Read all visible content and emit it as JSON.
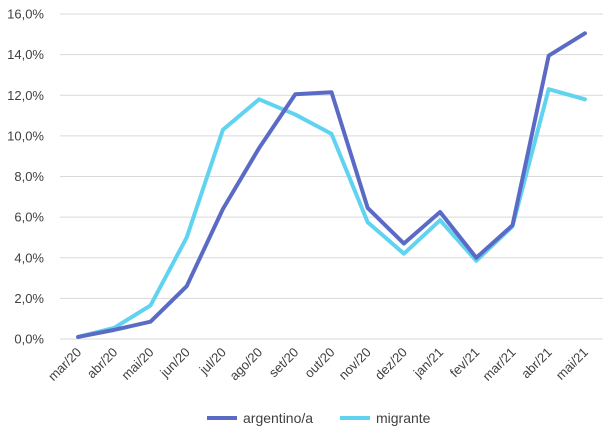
{
  "chart_data": {
    "type": "line",
    "categories": [
      "mar/20",
      "abr/20",
      "mai/20",
      "jun/20",
      "jul/20",
      "ago/20",
      "set/20",
      "out/20",
      "nov/20",
      "dez/20",
      "jan/21",
      "fev/21",
      "mar/21",
      "abr/21",
      "mai/21"
    ],
    "series": [
      {
        "name": "argentino/a",
        "color": "#5B6BC5",
        "values": [
          0.1,
          0.45,
          0.85,
          2.6,
          6.4,
          9.4,
          12.05,
          12.15,
          6.45,
          4.7,
          6.25,
          4.0,
          5.6,
          13.95,
          15.05
        ]
      },
      {
        "name": "migrante",
        "color": "#5FD3F0",
        "values": [
          0.1,
          0.55,
          1.65,
          5.0,
          10.3,
          11.8,
          11.05,
          10.1,
          5.75,
          4.2,
          5.85,
          3.85,
          5.55,
          12.3,
          11.8
        ]
      }
    ],
    "ylim": [
      0,
      16
    ],
    "yticks": [
      0,
      2,
      4,
      6,
      8,
      10,
      12,
      14,
      16
    ],
    "ytick_labels": [
      "0,0%",
      "2,0%",
      "4,0%",
      "6,0%",
      "8,0%",
      "10,0%",
      "12,0%",
      "14,0%",
      "16,0%"
    ],
    "grid": true,
    "legend_position": "bottom",
    "gridline_color": "#D9D9D9"
  }
}
